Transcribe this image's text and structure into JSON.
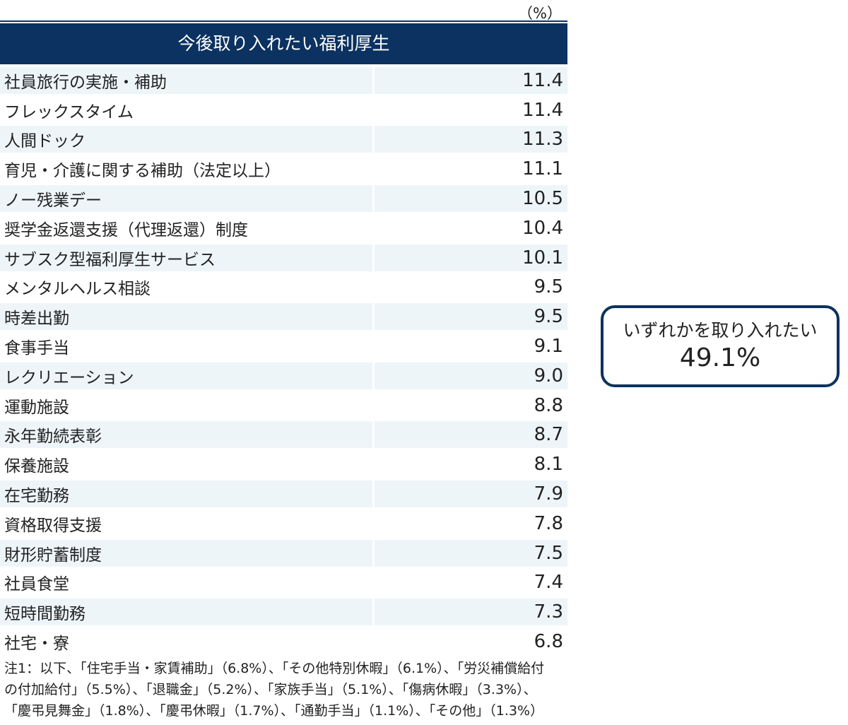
{
  "chart_data": {
    "type": "table",
    "unit": "（%）",
    "header": "今後取り入れたい福利厚生",
    "rows": [
      {
        "label": "社員旅行の実施・補助",
        "value": "11.4"
      },
      {
        "label": "フレックスタイム",
        "value": "11.4"
      },
      {
        "label": "人間ドック",
        "value": "11.3"
      },
      {
        "label": "育児・介護に関する補助（法定以上）",
        "value": "11.1"
      },
      {
        "label": "ノー残業デー",
        "value": "10.5"
      },
      {
        "label": "奨学金返還支援（代理返還）制度",
        "value": "10.4"
      },
      {
        "label": "サブスク型福利厚生サービス",
        "value": "10.1"
      },
      {
        "label": "メンタルヘルス相談",
        "value": "9.5"
      },
      {
        "label": "時差出勤",
        "value": "9.5"
      },
      {
        "label": "食事手当",
        "value": "9.1"
      },
      {
        "label": "レクリエーション",
        "value": "9.0"
      },
      {
        "label": "運動施設",
        "value": "8.8"
      },
      {
        "label": "永年勤続表彰",
        "value": "8.7"
      },
      {
        "label": "保養施設",
        "value": "8.1"
      },
      {
        "label": "在宅勤務",
        "value": "7.9"
      },
      {
        "label": "資格取得支援",
        "value": "7.8"
      },
      {
        "label": "財形貯蓄制度",
        "value": "7.5"
      },
      {
        "label": "社員食堂",
        "value": "7.4"
      },
      {
        "label": "短時間勤務",
        "value": "7.3"
      },
      {
        "label": "社宅・寮",
        "value": "6.8"
      }
    ],
    "callout": {
      "label": "いずれかを取り入れたい",
      "value": "49.1%"
    },
    "note_lines": [
      "注1：以下、「住宅手当・家賃補助」（6.8%）、「その他特別休暇」（6.1%）、「労災補償給付",
      "の付加給付」（5.5%）、「退職金」（5.2%）、「家族手当」（5.1%）、「傷病休暇」（3.3%）、",
      "「慶弔見舞金」（1.8%）、「慶弔休暇」（1.7%）、「通勤手当」（1.1%）、「その他」（1.3%）"
    ]
  },
  "colors": {
    "header_bg": "#0b3260",
    "row_shade": "#eef5f9",
    "callout_border": "#0b3260"
  }
}
